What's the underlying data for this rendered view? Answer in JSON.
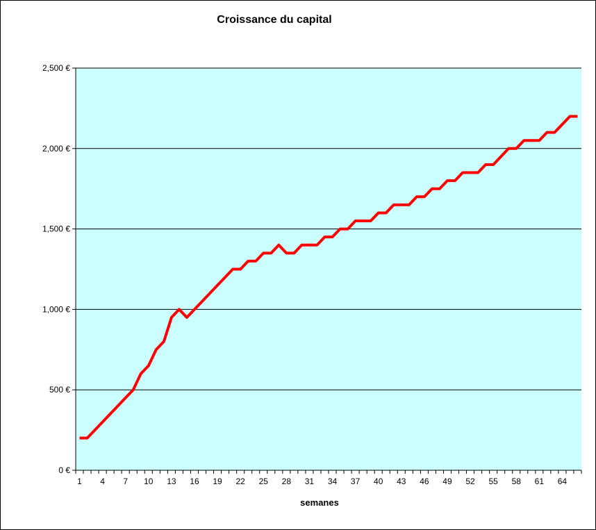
{
  "chart_data": {
    "type": "line",
    "title": "Croissance du capital",
    "xlabel": "semanes",
    "ylabel": "",
    "ylim": [
      0,
      2500
    ],
    "yticks": [
      "0 €",
      "500 €",
      "1,000 €",
      "1,500 €",
      "2,000 €",
      "2,500 €"
    ],
    "ytick_values": [
      0,
      500,
      1000,
      1500,
      2000,
      2500
    ],
    "xticks": [
      "1",
      "4",
      "7",
      "10",
      "13",
      "16",
      "19",
      "22",
      "25",
      "28",
      "31",
      "34",
      "37",
      "40",
      "43",
      "46",
      "49",
      "52",
      "55",
      "58",
      "61",
      "64"
    ],
    "x_count": 66,
    "grid": true,
    "legend": "none",
    "plot_background": "#ccffff",
    "gridline_color": "#000000",
    "series": [
      {
        "color": "#ff0000",
        "values": [
          200,
          200,
          250,
          300,
          350,
          400,
          450,
          500,
          600,
          650,
          750,
          800,
          950,
          1000,
          950,
          1000,
          1050,
          1100,
          1150,
          1200,
          1250,
          1250,
          1300,
          1300,
          1350,
          1350,
          1400,
          1350,
          1350,
          1400,
          1400,
          1400,
          1450,
          1450,
          1500,
          1500,
          1550,
          1550,
          1550,
          1600,
          1600,
          1650,
          1650,
          1650,
          1700,
          1700,
          1750,
          1750,
          1800,
          1800,
          1850,
          1850,
          1850,
          1900,
          1900,
          1950,
          2000,
          2000,
          2050,
          2050,
          2050,
          2100,
          2100,
          2150,
          2200,
          2200
        ]
      }
    ]
  }
}
